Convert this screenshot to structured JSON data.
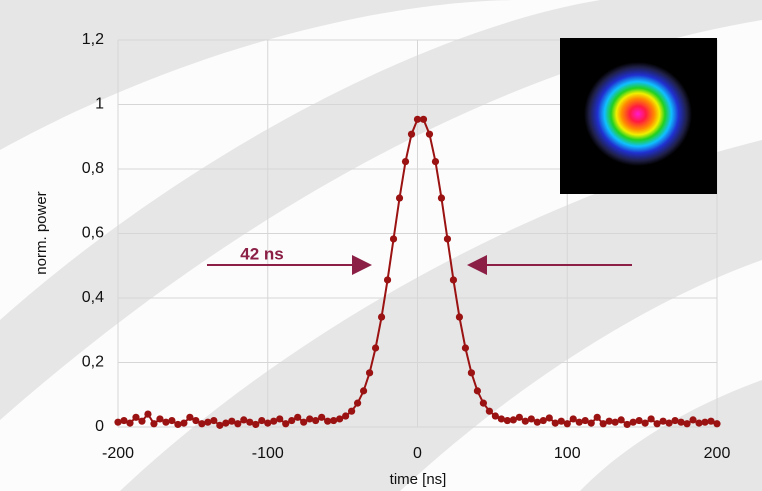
{
  "chart_data": {
    "type": "scatter",
    "xlabel": "time [ns]",
    "ylabel": "norm. power",
    "annotation": "42 ns",
    "color": "#9b1212",
    "grid": true,
    "xlim": [
      -200,
      200
    ],
    "ylim": [
      0,
      1.2
    ],
    "xticks": [
      -200,
      -100,
      0,
      100,
      200
    ],
    "yticks": [
      0,
      {
        "value": 0.2,
        "label": "0,2"
      },
      {
        "value": 0.4,
        "label": "0,4"
      },
      {
        "value": 0.6,
        "label": "0,6"
      },
      {
        "value": 0.8,
        "label": "0,8"
      },
      1,
      {
        "value": 1.2,
        "label": "1,2"
      }
    ],
    "x": [
      -200,
      -196,
      -192,
      -188,
      -184,
      -180,
      -176,
      -172,
      -168,
      -164,
      -160,
      -156,
      -152,
      -148,
      -144,
      -140,
      -136,
      -132,
      -128,
      -124,
      -120,
      -116,
      -112,
      -108,
      -104,
      -100,
      -96,
      -92,
      -88,
      -84,
      -80,
      -76,
      -72,
      -68,
      -64,
      -60,
      -56,
      -52,
      -48,
      -44,
      -40,
      -36,
      -32,
      -28,
      -24,
      -20,
      -16,
      -12,
      -8,
      -4,
      0,
      4,
      8,
      12,
      16,
      20,
      24,
      28,
      32,
      36,
      40,
      44,
      48,
      52,
      56,
      60,
      64,
      68,
      72,
      76,
      80,
      84,
      88,
      92,
      96,
      100,
      104,
      108,
      112,
      116,
      120,
      124,
      128,
      132,
      136,
      140,
      144,
      148,
      152,
      156,
      160,
      164,
      168,
      172,
      176,
      180,
      184,
      188,
      192,
      196,
      200
    ],
    "values": [
      0.015,
      0.02,
      0.012,
      0.03,
      0.018,
      0.04,
      0.01,
      0.025,
      0.015,
      0.02,
      0.008,
      0.012,
      0.03,
      0.02,
      0.01,
      0.015,
      0.02,
      0.005,
      0.012,
      0.018,
      0.01,
      0.022,
      0.015,
      0.008,
      0.02,
      0.012,
      0.018,
      0.025,
      0.01,
      0.02,
      0.03,
      0.015,
      0.025,
      0.02,
      0.03,
      0.018,
      0.02,
      0.025,
      0.034,
      0.049,
      0.074,
      0.112,
      0.168,
      0.245,
      0.341,
      0.456,
      0.583,
      0.71,
      0.823,
      0.908,
      0.954,
      0.954,
      0.908,
      0.823,
      0.71,
      0.583,
      0.456,
      0.341,
      0.245,
      0.168,
      0.112,
      0.074,
      0.049,
      0.034,
      0.025,
      0.02,
      0.022,
      0.03,
      0.018,
      0.025,
      0.015,
      0.02,
      0.028,
      0.012,
      0.018,
      0.01,
      0.025,
      0.015,
      0.02,
      0.012,
      0.03,
      0.01,
      0.018,
      0.015,
      0.022,
      0.008,
      0.015,
      0.02,
      0.012,
      0.025,
      0.01,
      0.018,
      0.012,
      0.02,
      0.015,
      0.01,
      0.022,
      0.012,
      0.015,
      0.018,
      0.01
    ]
  }
}
